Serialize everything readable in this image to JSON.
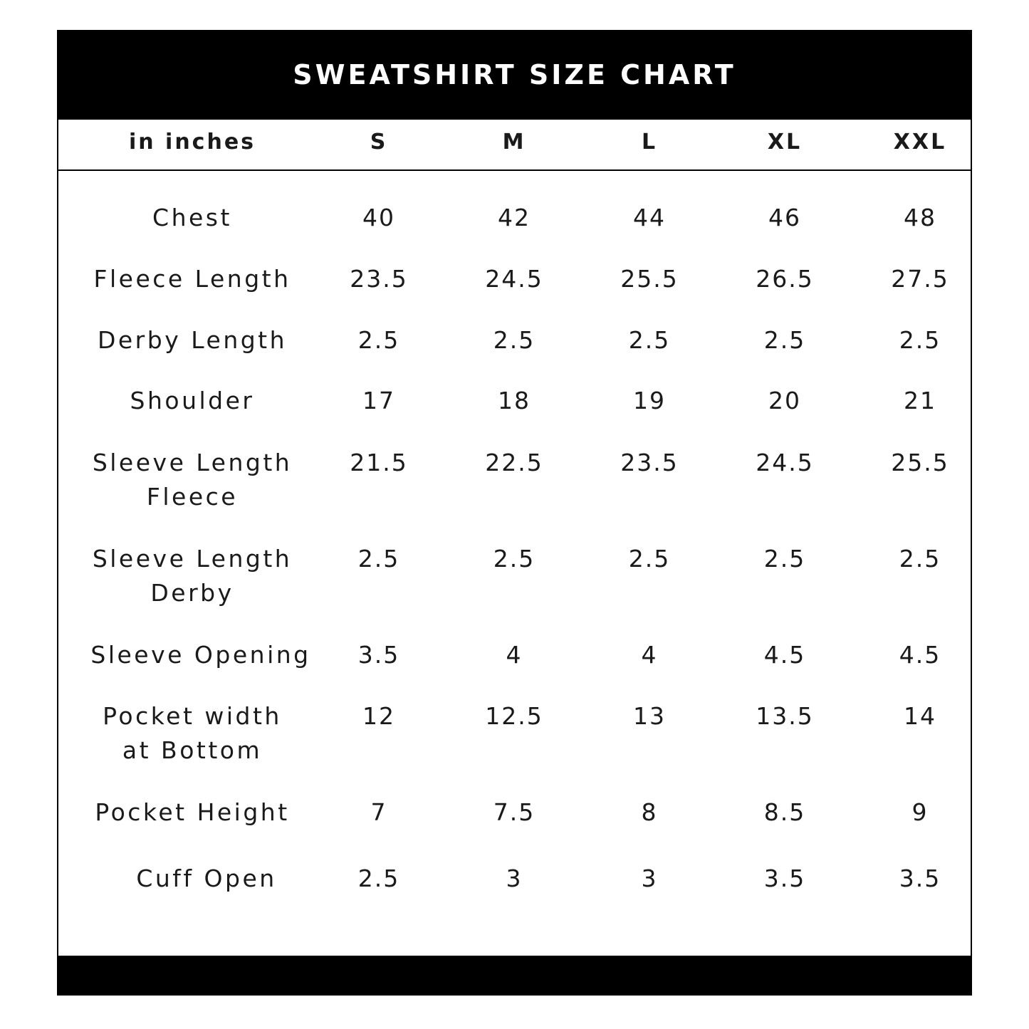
{
  "title": "SWEATSHIRT SIZE CHART",
  "table": {
    "unit_header": "in inches",
    "sizes": [
      "S",
      "M",
      "L",
      "XL",
      "XXL"
    ],
    "rows": [
      {
        "label": [
          "Chest"
        ],
        "values": [
          "40",
          "42",
          "44",
          "46",
          "48"
        ]
      },
      {
        "label": [
          "Fleece Length"
        ],
        "values": [
          "23.5",
          "24.5",
          "25.5",
          "26.5",
          "27.5"
        ]
      },
      {
        "label": [
          "Derby Length"
        ],
        "values": [
          "2.5",
          "2.5",
          "2.5",
          "2.5",
          "2.5"
        ]
      },
      {
        "label": [
          "Shoulder"
        ],
        "values": [
          "17",
          "18",
          "19",
          "20",
          "21"
        ]
      },
      {
        "label": [
          "Sleeve Length",
          "Fleece"
        ],
        "values": [
          "21.5",
          "22.5",
          "23.5",
          "24.5",
          "25.5"
        ]
      },
      {
        "label": [
          "Sleeve Length",
          "Derby"
        ],
        "values": [
          "2.5",
          "2.5",
          "2.5",
          "2.5",
          "2.5"
        ]
      },
      {
        "label": [
          "Sleeve Opening"
        ],
        "values": [
          "3.5",
          "4",
          "4",
          "4.5",
          "4.5"
        ]
      },
      {
        "label": [
          "Pocket width",
          "at Bottom"
        ],
        "values": [
          "12",
          "12.5",
          "13",
          "13.5",
          "14"
        ]
      },
      {
        "label": [
          "Pocket Height"
        ],
        "values": [
          "7",
          "7.5",
          "8",
          "8.5",
          "9"
        ]
      },
      {
        "label": [
          "Cuff Open"
        ],
        "values": [
          "2.5",
          "3",
          "3",
          "3.5",
          "3.5"
        ]
      }
    ]
  },
  "colors": {
    "bar": "#000000",
    "text": "#1a1a1a",
    "background": "#ffffff"
  }
}
